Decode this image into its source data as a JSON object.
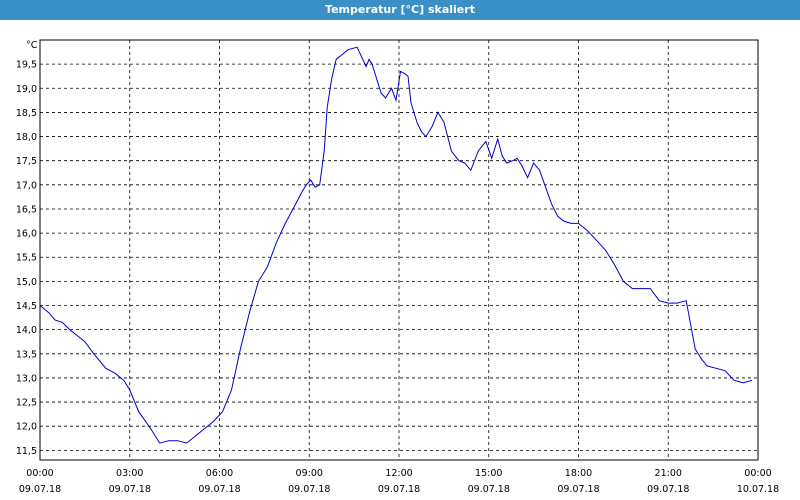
{
  "window": {
    "title": "Temperatur [°C] skaliert"
  },
  "colors": {
    "titlebar": "#3a8fc7",
    "line": "#0000cc",
    "grid": "#000000"
  },
  "chart_data": {
    "type": "line",
    "title": "Temperatur [°C] skaliert",
    "ylabel": "°C",
    "xlabel": "",
    "grid": true,
    "legend": "none",
    "ylim": [
      11.3,
      20.0
    ],
    "xlim": [
      0,
      24
    ],
    "y_ticks": [
      "11,5",
      "12,0",
      "12,5",
      "13,0",
      "13,5",
      "14,0",
      "14,5",
      "15,0",
      "15,5",
      "16,0",
      "16,5",
      "17,0",
      "17,5",
      "18,0",
      "18,5",
      "19,0",
      "19,5"
    ],
    "x_ticks": [
      {
        "time": "00:00",
        "date": "09.07.18",
        "hour": 0
      },
      {
        "time": "03:00",
        "date": "09.07.18",
        "hour": 3
      },
      {
        "time": "06:00",
        "date": "09.07.18",
        "hour": 6
      },
      {
        "time": "09:00",
        "date": "09.07.18",
        "hour": 9
      },
      {
        "time": "12:00",
        "date": "09.07.18",
        "hour": 12
      },
      {
        "time": "15:00",
        "date": "09.07.18",
        "hour": 15
      },
      {
        "time": "18:00",
        "date": "09.07.18",
        "hour": 18
      },
      {
        "time": "21:00",
        "date": "09.07.18",
        "hour": 21
      },
      {
        "time": "00:00",
        "date": "10.07.18",
        "hour": 24
      }
    ],
    "series": [
      {
        "color": "#0000cc",
        "x": [
          0,
          0.3,
          0.5,
          0.75,
          1.0,
          1.2,
          1.5,
          1.8,
          2.0,
          2.2,
          2.5,
          2.8,
          3.0,
          3.3,
          3.7,
          4.0,
          4.3,
          4.6,
          4.9,
          5.2,
          5.5,
          5.8,
          6.1,
          6.4,
          6.7,
          7.0,
          7.3,
          7.6,
          7.9,
          8.2,
          8.5,
          8.75,
          8.9,
          9.05,
          9.2,
          9.35,
          9.5,
          9.6,
          9.75,
          9.9,
          10.1,
          10.3,
          10.6,
          10.9,
          11.0,
          11.1,
          11.25,
          11.4,
          11.55,
          11.75,
          11.9,
          12.05,
          12.2,
          12.3,
          12.4,
          12.6,
          12.75,
          12.9,
          13.1,
          13.3,
          13.5,
          13.75,
          14.0,
          14.2,
          14.4,
          14.65,
          14.9,
          15.1,
          15.3,
          15.45,
          15.6,
          15.8,
          15.95,
          16.1,
          16.3,
          16.5,
          16.7,
          16.9,
          17.1,
          17.3,
          17.5,
          17.75,
          18.0,
          18.3,
          18.6,
          18.9,
          19.2,
          19.5,
          19.8,
          20.1,
          20.4,
          20.7,
          21.0,
          21.3,
          21.6,
          21.9,
          22.1,
          22.3,
          22.6,
          22.9,
          23.2,
          23.5,
          23.8
        ],
        "y": [
          14.5,
          14.35,
          14.2,
          14.15,
          14.0,
          13.9,
          13.75,
          13.5,
          13.35,
          13.2,
          13.1,
          12.95,
          12.75,
          12.3,
          11.95,
          11.65,
          11.7,
          11.7,
          11.65,
          11.8,
          11.95,
          12.1,
          12.3,
          12.75,
          13.6,
          14.35,
          15.0,
          15.3,
          15.8,
          16.2,
          16.55,
          16.85,
          17.0,
          17.1,
          16.95,
          17.0,
          17.7,
          18.6,
          19.2,
          19.6,
          19.7,
          19.8,
          19.85,
          19.45,
          19.6,
          19.5,
          19.2,
          18.9,
          18.8,
          19.0,
          18.75,
          19.35,
          19.3,
          19.25,
          18.7,
          18.3,
          18.1,
          18.0,
          18.2,
          18.5,
          18.3,
          17.7,
          17.5,
          17.45,
          17.3,
          17.7,
          17.9,
          17.55,
          17.95,
          17.6,
          17.45,
          17.5,
          17.55,
          17.4,
          17.15,
          17.45,
          17.3,
          16.95,
          16.6,
          16.35,
          16.25,
          16.2,
          16.2,
          16.05,
          15.85,
          15.65,
          15.35,
          15.0,
          14.85,
          14.85,
          14.85,
          14.6,
          14.55,
          14.55,
          14.6,
          13.6,
          13.4,
          13.25,
          13.2,
          13.15,
          12.95,
          12.9,
          12.95
        ]
      }
    ]
  }
}
